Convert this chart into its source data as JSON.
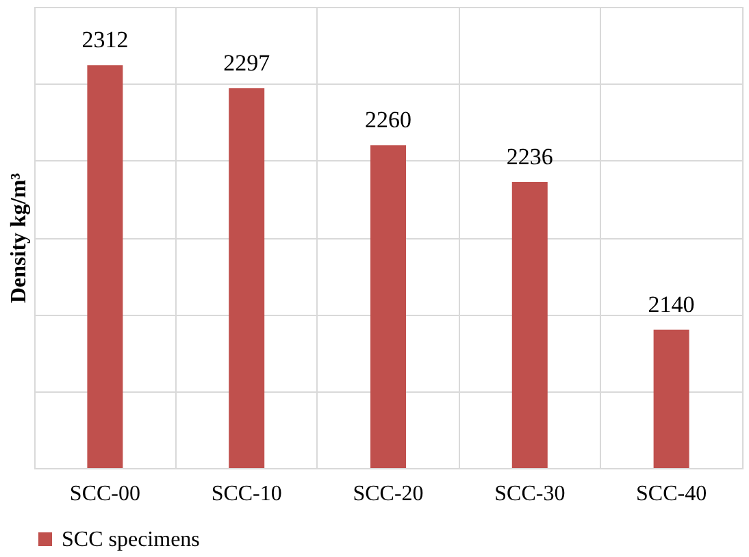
{
  "chart_data": {
    "type": "bar",
    "ylabel": "Density kg/m³",
    "categories": [
      "SCC-00",
      "SCC-10",
      "SCC-20",
      "SCC-30",
      "SCC-40"
    ],
    "series": [
      {
        "name": "SCC specimens",
        "color": "#c0504d",
        "values": [
          2312,
          2297,
          2260,
          2236,
          2140
        ]
      }
    ],
    "ylim": [
      2050,
      2350
    ],
    "yticks": [
      {
        "value": 2050,
        "label": null
      },
      {
        "value": 2100,
        "label": null
      },
      {
        "value": 2150,
        "label": null
      },
      {
        "value": 2200,
        "label": null
      },
      {
        "value": 2250,
        "label": null
      },
      {
        "value": 2300,
        "label": null
      },
      {
        "value": 2350,
        "label": null
      }
    ],
    "tick_labels": "x",
    "grid": true,
    "legend": "bottom",
    "data_labels": true
  }
}
